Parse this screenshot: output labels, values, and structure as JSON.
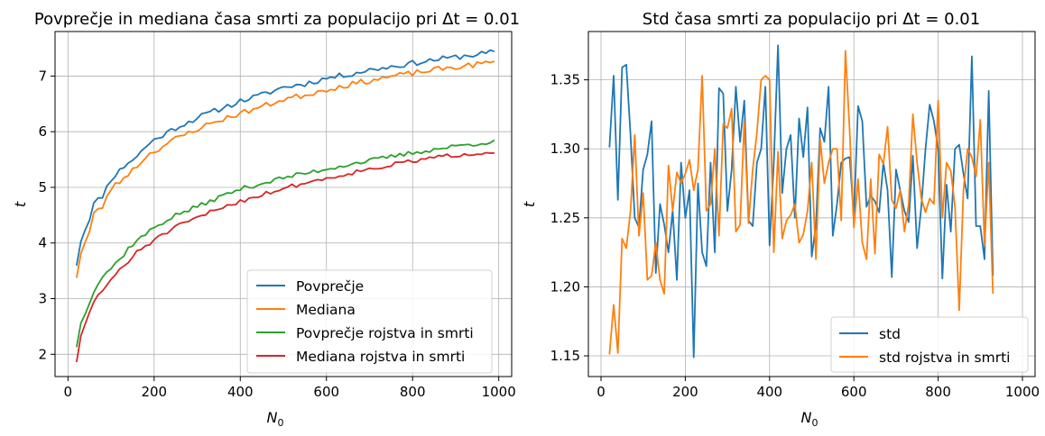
{
  "chart_data": [
    {
      "type": "line",
      "title": "Povprečje in mediana časa smrti za populacijo pri Δt = 0.01",
      "title_main": "Povprečje in mediana časa smrti za populacijo pri ",
      "title_math": "Δt = 0.01",
      "xlabel": "N",
      "xlabel_sub": "0",
      "ylabel": "t",
      "xlim": [
        -30,
        1030
      ],
      "ylim": [
        1.6,
        7.8
      ],
      "xticks": [
        0,
        200,
        400,
        600,
        800,
        1000
      ],
      "yticks": [
        2,
        3,
        4,
        5,
        6,
        7
      ],
      "grid": true,
      "legend_position": "lower-right",
      "x_start": 20,
      "x_step": 10,
      "series": [
        {
          "name": "Povprečje",
          "color": "#1f77b4",
          "anchors": [
            [
              20,
              3.62
            ],
            [
              30,
              4.05
            ],
            [
              50,
              4.45
            ],
            [
              60,
              4.7
            ],
            [
              80,
              4.85
            ],
            [
              100,
              5.15
            ],
            [
              120,
              5.3
            ],
            [
              140,
              5.45
            ],
            [
              160,
              5.55
            ],
            [
              180,
              5.73
            ],
            [
              200,
              5.85
            ],
            [
              250,
              6.07
            ],
            [
              300,
              6.25
            ],
            [
              350,
              6.4
            ],
            [
              400,
              6.55
            ],
            [
              450,
              6.66
            ],
            [
              500,
              6.8
            ],
            [
              550,
              6.86
            ],
            [
              600,
              6.96
            ],
            [
              650,
              7.03
            ],
            [
              700,
              7.11
            ],
            [
              750,
              7.17
            ],
            [
              800,
              7.23
            ],
            [
              850,
              7.29
            ],
            [
              900,
              7.34
            ],
            [
              950,
              7.39
            ],
            [
              990,
              7.43
            ]
          ],
          "wiggle": 0.05,
          "seed": 11
        },
        {
          "name": "Mediana",
          "color": "#ff7f0e",
          "anchors": [
            [
              20,
              3.4
            ],
            [
              30,
              3.82
            ],
            [
              50,
              4.2
            ],
            [
              60,
              4.52
            ],
            [
              80,
              4.65
            ],
            [
              100,
              4.98
            ],
            [
              120,
              5.1
            ],
            [
              140,
              5.25
            ],
            [
              160,
              5.38
            ],
            [
              180,
              5.55
            ],
            [
              200,
              5.65
            ],
            [
              250,
              5.87
            ],
            [
              300,
              6.05
            ],
            [
              350,
              6.2
            ],
            [
              400,
              6.33
            ],
            [
              450,
              6.45
            ],
            [
              500,
              6.58
            ],
            [
              550,
              6.66
            ],
            [
              600,
              6.76
            ],
            [
              650,
              6.84
            ],
            [
              700,
              6.92
            ],
            [
              750,
              6.99
            ],
            [
              800,
              7.05
            ],
            [
              850,
              7.11
            ],
            [
              900,
              7.16
            ],
            [
              950,
              7.21
            ],
            [
              990,
              7.25
            ]
          ],
          "wiggle": 0.05,
          "seed": 23
        },
        {
          "name": "Povprečje rojstva in smrti",
          "color": "#2ca02c",
          "anchors": [
            [
              20,
              2.15
            ],
            [
              30,
              2.55
            ],
            [
              50,
              2.95
            ],
            [
              60,
              3.15
            ],
            [
              80,
              3.4
            ],
            [
              100,
              3.55
            ],
            [
              120,
              3.7
            ],
            [
              140,
              3.9
            ],
            [
              160,
              4.05
            ],
            [
              180,
              4.15
            ],
            [
              200,
              4.28
            ],
            [
              250,
              4.5
            ],
            [
              300,
              4.65
            ],
            [
              350,
              4.82
            ],
            [
              400,
              4.97
            ],
            [
              450,
              5.07
            ],
            [
              500,
              5.17
            ],
            [
              550,
              5.25
            ],
            [
              600,
              5.33
            ],
            [
              650,
              5.41
            ],
            [
              700,
              5.48
            ],
            [
              750,
              5.55
            ],
            [
              800,
              5.62
            ],
            [
              850,
              5.68
            ],
            [
              900,
              5.74
            ],
            [
              950,
              5.79
            ],
            [
              990,
              5.82
            ]
          ],
          "wiggle": 0.04,
          "seed": 37
        },
        {
          "name": "Mediana rojstva in smrti",
          "color": "#d62728",
          "anchors": [
            [
              20,
              1.88
            ],
            [
              30,
              2.3
            ],
            [
              50,
              2.75
            ],
            [
              60,
              2.95
            ],
            [
              80,
              3.15
            ],
            [
              100,
              3.35
            ],
            [
              120,
              3.5
            ],
            [
              140,
              3.65
            ],
            [
              160,
              3.85
            ],
            [
              180,
              3.95
            ],
            [
              200,
              4.05
            ],
            [
              250,
              4.28
            ],
            [
              300,
              4.45
            ],
            [
              350,
              4.62
            ],
            [
              400,
              4.75
            ],
            [
              450,
              4.87
            ],
            [
              500,
              4.98
            ],
            [
              550,
              5.08
            ],
            [
              600,
              5.16
            ],
            [
              650,
              5.25
            ],
            [
              700,
              5.33
            ],
            [
              750,
              5.4
            ],
            [
              800,
              5.47
            ],
            [
              850,
              5.53
            ],
            [
              900,
              5.58
            ],
            [
              950,
              5.62
            ],
            [
              990,
              5.65
            ]
          ],
          "wiggle": 0.04,
          "seed": 51
        }
      ]
    },
    {
      "type": "line",
      "title": "Std časa smrti za populacijo pri Δt = 0.01",
      "title_main": "Std časa smrti za populacijo pri ",
      "title_math": "Δt = 0.01",
      "xlabel": "N",
      "xlabel_sub": "0",
      "ylabel": "t",
      "xlim": [
        -30,
        1030
      ],
      "ylim": [
        1.135,
        1.385
      ],
      "xticks": [
        0,
        200,
        400,
        600,
        800,
        1000
      ],
      "yticks": [
        1.15,
        1.2,
        1.25,
        1.3,
        1.35
      ],
      "yticks_labels": [
        "1.15",
        "1.20",
        "1.25",
        "1.30",
        "1.35"
      ],
      "grid": true,
      "legend_position": "lower-right",
      "x_start": 20,
      "x_step": 10,
      "series": [
        {
          "name": "std",
          "color": "#1f77b4",
          "values": [
            1.301,
            1.353,
            1.263,
            1.359,
            1.361,
            1.31,
            1.25,
            1.243,
            1.285,
            1.296,
            1.32,
            1.21,
            1.26,
            1.245,
            1.225,
            1.255,
            1.205,
            1.29,
            1.25,
            1.27,
            1.149,
            1.275,
            1.225,
            1.215,
            1.29,
            1.225,
            1.344,
            1.34,
            1.255,
            1.285,
            1.345,
            1.305,
            1.335,
            1.248,
            1.244,
            1.29,
            1.3,
            1.345,
            1.23,
            1.29,
            1.375,
            1.268,
            1.3,
            1.31,
            1.25,
            1.322,
            1.294,
            1.33,
            1.222,
            1.245,
            1.315,
            1.305,
            1.345,
            1.237,
            1.26,
            1.29,
            1.293,
            1.294,
            1.25,
            1.331,
            1.32,
            1.258,
            1.266,
            1.262,
            1.254,
            1.29,
            1.27,
            1.207,
            1.285,
            1.27,
            1.255,
            1.247,
            1.295,
            1.228,
            1.258,
            1.3,
            1.332,
            1.32,
            1.3,
            1.206,
            1.274,
            1.24,
            1.3,
            1.303,
            1.282,
            1.264,
            1.367,
            1.244,
            1.244,
            1.22,
            1.342,
            1.208
          ]
        },
        {
          "name": "std rojstva in smrti",
          "color": "#ff7f0e",
          "values": [
            1.151,
            1.187,
            1.152,
            1.235,
            1.228,
            1.255,
            1.31,
            1.237,
            1.268,
            1.205,
            1.208,
            1.232,
            1.205,
            1.195,
            1.288,
            1.255,
            1.283,
            1.275,
            1.282,
            1.292,
            1.27,
            1.285,
            1.353,
            1.255,
            1.26,
            1.3,
            1.237,
            1.318,
            1.315,
            1.329,
            1.24,
            1.245,
            1.32,
            1.246,
            1.285,
            1.312,
            1.35,
            1.353,
            1.35,
            1.225,
            1.298,
            1.235,
            1.248,
            1.252,
            1.26,
            1.232,
            1.238,
            1.255,
            1.29,
            1.22,
            1.307,
            1.275,
            1.29,
            1.3,
            1.3,
            1.248,
            1.371,
            1.313,
            1.243,
            1.278,
            1.232,
            1.22,
            1.278,
            1.224,
            1.296,
            1.289,
            1.316,
            1.263,
            1.257,
            1.27,
            1.24,
            1.26,
            1.325,
            1.29,
            1.264,
            1.254,
            1.264,
            1.26,
            1.335,
            1.25,
            1.29,
            1.284,
            1.258,
            1.183,
            1.27,
            1.3,
            1.294,
            1.28,
            1.321,
            1.23,
            1.29,
            1.195
          ]
        }
      ]
    }
  ],
  "colors": {
    "grid": "#b0b0b0",
    "axes": "#000000"
  }
}
